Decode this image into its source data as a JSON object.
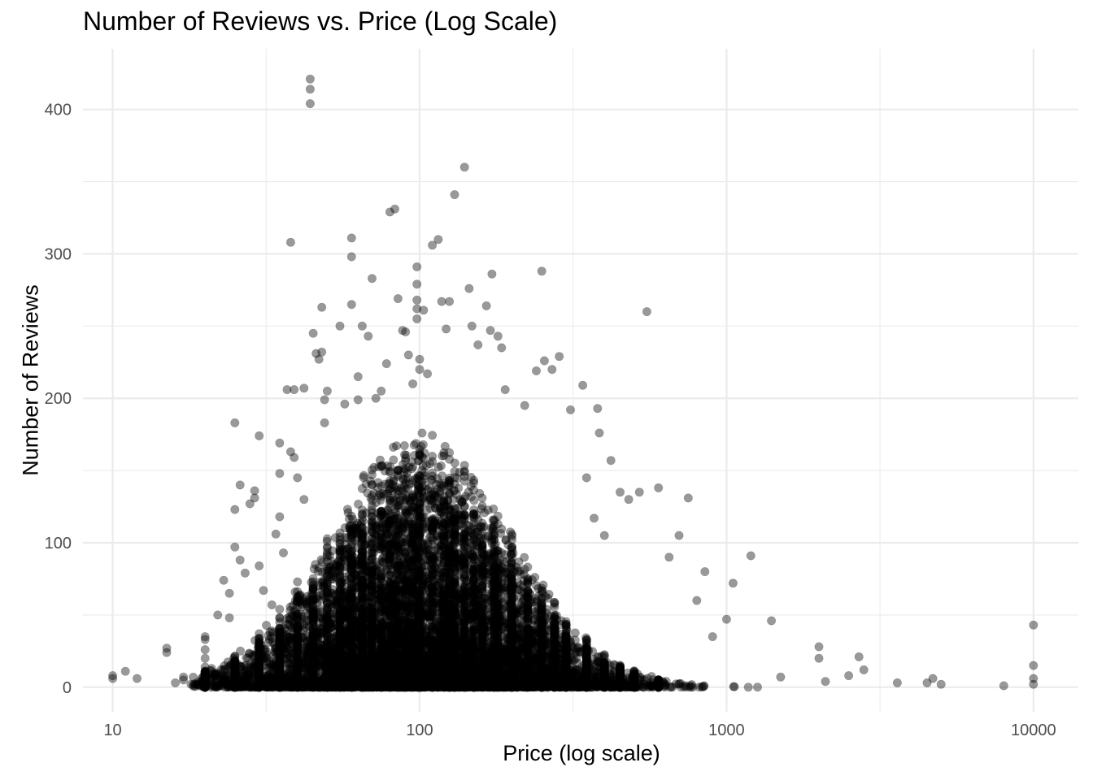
{
  "chart_data": {
    "type": "scatter",
    "title": "Number of Reviews vs. Price (Log Scale)",
    "xlabel": "Price (log scale)",
    "ylabel": "Number of Reviews",
    "x_scale": "log10",
    "xlim": [
      8,
      14000
    ],
    "ylim": [
      -17,
      442
    ],
    "x_ticks": [
      10,
      100,
      1000,
      10000
    ],
    "x_tick_labels": [
      "10",
      "100",
      "1000",
      "10000"
    ],
    "y_ticks": [
      0,
      100,
      200,
      300,
      400
    ],
    "y_tick_labels": [
      "0",
      "100",
      "200",
      "300",
      "400"
    ],
    "grid": true,
    "legend": "none",
    "point_color": "#000000",
    "point_opacity": 0.4,
    "background": "#ffffff",
    "grid_color": "#ebebeb",
    "points": [
      [
        10,
        6
      ],
      [
        10,
        8
      ],
      [
        11,
        11
      ],
      [
        12,
        6
      ],
      [
        15,
        27
      ],
      [
        15,
        24
      ],
      [
        16,
        3
      ],
      [
        17,
        5
      ],
      [
        17,
        7
      ],
      [
        18,
        2
      ],
      [
        20,
        35
      ],
      [
        20,
        33
      ],
      [
        20,
        26
      ],
      [
        20,
        20
      ],
      [
        20,
        14
      ],
      [
        20,
        9
      ],
      [
        20,
        5
      ],
      [
        21,
        13
      ],
      [
        22,
        50
      ],
      [
        23,
        74
      ],
      [
        24,
        65
      ],
      [
        24,
        48
      ],
      [
        25,
        183
      ],
      [
        25,
        123
      ],
      [
        25,
        97
      ],
      [
        26,
        140
      ],
      [
        26,
        88
      ],
      [
        27,
        79
      ],
      [
        28,
        127
      ],
      [
        29,
        136
      ],
      [
        29,
        131
      ],
      [
        30,
        174
      ],
      [
        30,
        84
      ],
      [
        31,
        67
      ],
      [
        33,
        57
      ],
      [
        34,
        106
      ],
      [
        35,
        169
      ],
      [
        35,
        148
      ],
      [
        35,
        118
      ],
      [
        36,
        93
      ],
      [
        37,
        206
      ],
      [
        38,
        308
      ],
      [
        38,
        163
      ],
      [
        39,
        206
      ],
      [
        39,
        159
      ],
      [
        40,
        145
      ],
      [
        42,
        207
      ],
      [
        42,
        130
      ],
      [
        44,
        421
      ],
      [
        44,
        414
      ],
      [
        44,
        404
      ],
      [
        45,
        245
      ],
      [
        46,
        231
      ],
      [
        47,
        227
      ],
      [
        48,
        263
      ],
      [
        48,
        232
      ],
      [
        49,
        199
      ],
      [
        49,
        183
      ],
      [
        50,
        205
      ],
      [
        55,
        250
      ],
      [
        57,
        196
      ],
      [
        60,
        311
      ],
      [
        60,
        298
      ],
      [
        60,
        265
      ],
      [
        63,
        215
      ],
      [
        63,
        199
      ],
      [
        65,
        250
      ],
      [
        68,
        243
      ],
      [
        70,
        283
      ],
      [
        72,
        200
      ],
      [
        75,
        205
      ],
      [
        78,
        224
      ],
      [
        80,
        329
      ],
      [
        83,
        331
      ],
      [
        85,
        269
      ],
      [
        88,
        247
      ],
      [
        90,
        246
      ],
      [
        92,
        230
      ],
      [
        95,
        210
      ],
      [
        98,
        291
      ],
      [
        98,
        279
      ],
      [
        98,
        268
      ],
      [
        98,
        262
      ],
      [
        98,
        255
      ],
      [
        100,
        227
      ],
      [
        100,
        220
      ],
      [
        103,
        261
      ],
      [
        106,
        217
      ],
      [
        110,
        306
      ],
      [
        115,
        310
      ],
      [
        118,
        267
      ],
      [
        122,
        248
      ],
      [
        125,
        267
      ],
      [
        130,
        341
      ],
      [
        140,
        360
      ],
      [
        145,
        276
      ],
      [
        148,
        250
      ],
      [
        155,
        237
      ],
      [
        165,
        264
      ],
      [
        170,
        247
      ],
      [
        172,
        286
      ],
      [
        180,
        243
      ],
      [
        185,
        235
      ],
      [
        190,
        206
      ],
      [
        220,
        195
      ],
      [
        240,
        219
      ],
      [
        250,
        288
      ],
      [
        255,
        226
      ],
      [
        270,
        220
      ],
      [
        285,
        229
      ],
      [
        310,
        192
      ],
      [
        340,
        209
      ],
      [
        350,
        145
      ],
      [
        370,
        117
      ],
      [
        380,
        193
      ],
      [
        385,
        176
      ],
      [
        400,
        105
      ],
      [
        420,
        157
      ],
      [
        450,
        135
      ],
      [
        480,
        130
      ],
      [
        520,
        135
      ],
      [
        550,
        260
      ],
      [
        600,
        138
      ],
      [
        650,
        90
      ],
      [
        700,
        105
      ],
      [
        750,
        131
      ],
      [
        800,
        60
      ],
      [
        850,
        80
      ],
      [
        900,
        35
      ],
      [
        1000,
        47
      ],
      [
        1050,
        72
      ],
      [
        1200,
        91
      ],
      [
        1400,
        46
      ],
      [
        1500,
        7
      ],
      [
        2000,
        28
      ],
      [
        2000,
        20
      ],
      [
        2100,
        4
      ],
      [
        2500,
        8
      ],
      [
        2700,
        21
      ],
      [
        2800,
        12
      ],
      [
        3600,
        3
      ],
      [
        4500,
        3
      ],
      [
        4700,
        6
      ],
      [
        5000,
        2
      ],
      [
        8000,
        1
      ],
      [
        10000,
        43
      ],
      [
        10000,
        15
      ],
      [
        10000,
        6
      ],
      [
        10000,
        2
      ]
    ],
    "dense_cluster": {
      "x_range": [
        18,
        1300
      ],
      "center_x": 100,
      "peak_y": 120,
      "count": 12000
    }
  }
}
